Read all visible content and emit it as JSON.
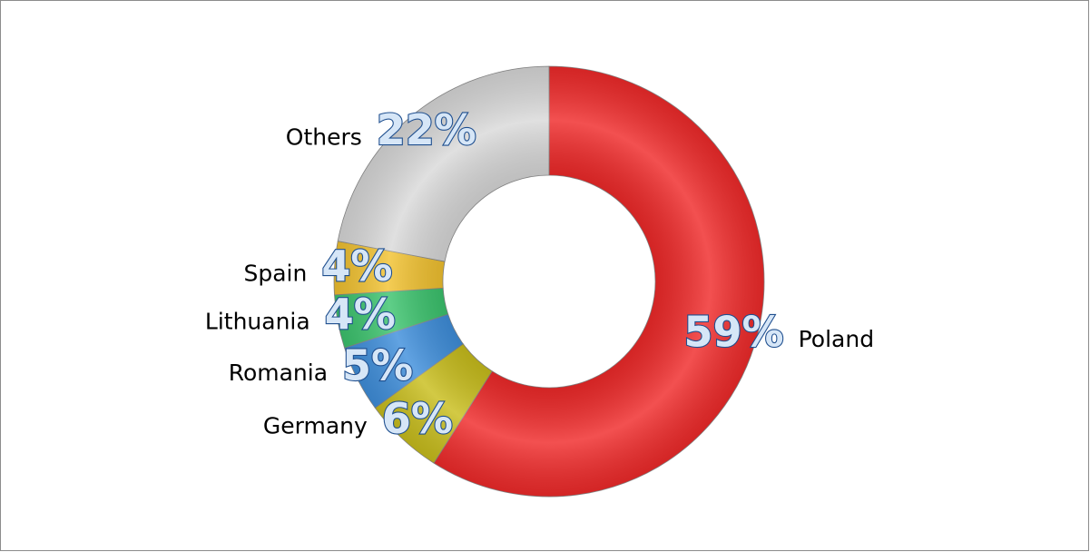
{
  "chart_data": {
    "type": "donut",
    "categories": [
      "Poland",
      "Germany",
      "Romania",
      "Lithuania",
      "Spain",
      "Others"
    ],
    "values": [
      59,
      6,
      5,
      4,
      4,
      22
    ],
    "value_labels": [
      "59%",
      "6%",
      "5%",
      "4%",
      "4%",
      "22%"
    ],
    "colors": [
      "#f02a2a",
      "#c9be1c",
      "#3f8fdc",
      "#3cc46e",
      "#f2c230",
      "#d9d9d9"
    ]
  }
}
